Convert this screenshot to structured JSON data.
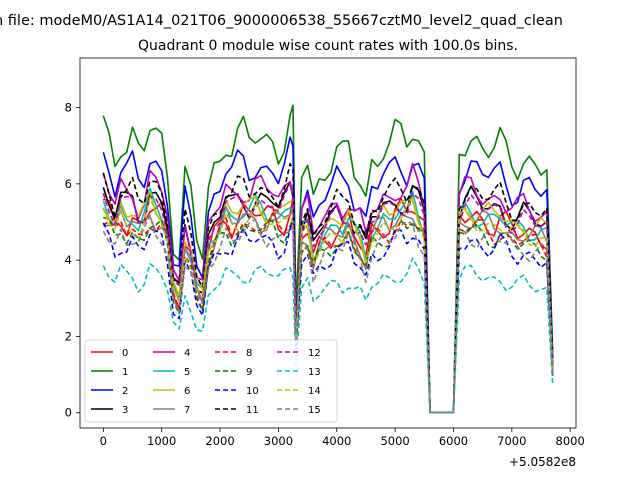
{
  "chart_data": {
    "type": "line",
    "suptitle": "n file: modeM0/AS1A14_021T06_9000006538_55667cztM0_level2_quad_clean",
    "title": "Quadrant 0 module wise count rates with 100.0s bins.",
    "xlabel": "",
    "ylabel": "",
    "x_offset_label": "+5.0582e8",
    "xlim": [
      -400,
      8100
    ],
    "ylim": [
      -0.4,
      9.3
    ],
    "x_ticks": [
      0,
      1000,
      2000,
      3000,
      4000,
      5000,
      6000,
      7000,
      8000
    ],
    "y_ticks": [
      0,
      2,
      4,
      6,
      8
    ],
    "x_tick_labels": [
      "0",
      "1000",
      "2000",
      "3000",
      "4000",
      "5000",
      "6000",
      "7000",
      "8000"
    ],
    "y_tick_labels": [
      "0",
      "2",
      "4",
      "6",
      "8"
    ],
    "legend_position": "lower-left",
    "legend_columns": 4,
    "series": [
      {
        "name": "0",
        "color": "#ff0000",
        "dash": "solid",
        "level": 5.4,
        "amp": 0.5,
        "phase": 0.0
      },
      {
        "name": "1",
        "color": "#008000",
        "dash": "solid",
        "level": 7.5,
        "amp": 0.6,
        "phase": 0.7
      },
      {
        "name": "2",
        "color": "#0000ff",
        "dash": "solid",
        "level": 6.7,
        "amp": 0.55,
        "phase": 1.4
      },
      {
        "name": "3",
        "color": "#000000",
        "dash": "solid",
        "level": 5.8,
        "amp": 0.45,
        "phase": 2.1
      },
      {
        "name": "4",
        "color": "#bf00bf",
        "dash": "solid",
        "level": 6.1,
        "amp": 0.45,
        "phase": 2.8
      },
      {
        "name": "5",
        "color": "#00bfbf",
        "dash": "solid",
        "level": 5.5,
        "amp": 0.4,
        "phase": 3.5
      },
      {
        "name": "6",
        "color": "#bfbf00",
        "dash": "solid",
        "level": 5.6,
        "amp": 0.4,
        "phase": 4.2
      },
      {
        "name": "7",
        "color": "#808080",
        "dash": "solid",
        "level": 5.3,
        "amp": 0.4,
        "phase": 4.9
      },
      {
        "name": "8",
        "color": "#ff0000",
        "dash": "dashed",
        "level": 5.1,
        "amp": 0.35,
        "phase": 5.6
      },
      {
        "name": "9",
        "color": "#008000",
        "dash": "dashed",
        "level": 5.0,
        "amp": 0.35,
        "phase": 6.3
      },
      {
        "name": "10",
        "color": "#0000ff",
        "dash": "dashed",
        "level": 4.7,
        "amp": 0.4,
        "phase": 7.0
      },
      {
        "name": "11",
        "color": "#000000",
        "dash": "dashed",
        "level": 6.1,
        "amp": 0.45,
        "phase": 7.7
      },
      {
        "name": "12",
        "color": "#bf00bf",
        "dash": "dashed",
        "level": 5.7,
        "amp": 0.4,
        "phase": 8.4
      },
      {
        "name": "13",
        "color": "#00bfbf",
        "dash": "dashed",
        "level": 3.8,
        "amp": 0.3,
        "phase": 9.1
      },
      {
        "name": "14",
        "color": "#bfbf00",
        "dash": "dashed",
        "level": 5.3,
        "amp": 0.4,
        "phase": 9.8
      },
      {
        "name": "15",
        "color": "#808080",
        "dash": "dashed",
        "level": 4.9,
        "amp": 0.4,
        "phase": 10.5
      }
    ],
    "x_times": [
      0,
      100,
      200,
      300,
      400,
      500,
      600,
      700,
      800,
      900,
      1000,
      1100,
      1200,
      1300,
      1400,
      1500,
      1600,
      1700,
      1800,
      1900,
      2000,
      2100,
      2200,
      2300,
      2400,
      2500,
      2600,
      2700,
      2800,
      2900,
      3000,
      3100,
      3200,
      3250,
      3300,
      3400,
      3500,
      3600,
      3700,
      3800,
      3900,
      4000,
      4100,
      4200,
      4300,
      4400,
      4500,
      4600,
      4700,
      4800,
      4900,
      5000,
      5100,
      5200,
      5300,
      5400,
      5500,
      5600,
      5700,
      5800,
      5900,
      6000,
      6100,
      6200,
      6300,
      6400,
      6500,
      6600,
      6700,
      6800,
      6900,
      7000,
      7100,
      7200,
      7300,
      7400,
      7500,
      7600,
      7700
    ],
    "profile": [
      1.0,
      0.95,
      0.9,
      0.97,
      0.93,
      0.95,
      0.9,
      0.92,
      1.0,
      0.97,
      0.95,
      0.85,
      0.6,
      0.55,
      0.82,
      0.75,
      0.6,
      0.55,
      0.78,
      0.85,
      0.9,
      0.97,
      0.93,
      0.95,
      0.97,
      0.95,
      0.97,
      0.96,
      0.95,
      0.96,
      0.93,
      0.95,
      1.0,
      1.0,
      0.35,
      0.85,
      0.88,
      0.75,
      0.82,
      0.86,
      0.88,
      0.9,
      0.88,
      0.92,
      0.85,
      0.82,
      0.75,
      0.88,
      0.9,
      0.93,
      0.92,
      0.95,
      0.97,
      0.96,
      1.0,
      0.95,
      0.9,
      0.0,
      0.0,
      0.0,
      0.0,
      0.0,
      0.93,
      0.95,
      0.96,
      0.95,
      0.94,
      0.93,
      0.92,
      0.93,
      0.9,
      0.88,
      0.87,
      0.89,
      0.88,
      0.87,
      0.86,
      0.85,
      0.2
    ]
  }
}
